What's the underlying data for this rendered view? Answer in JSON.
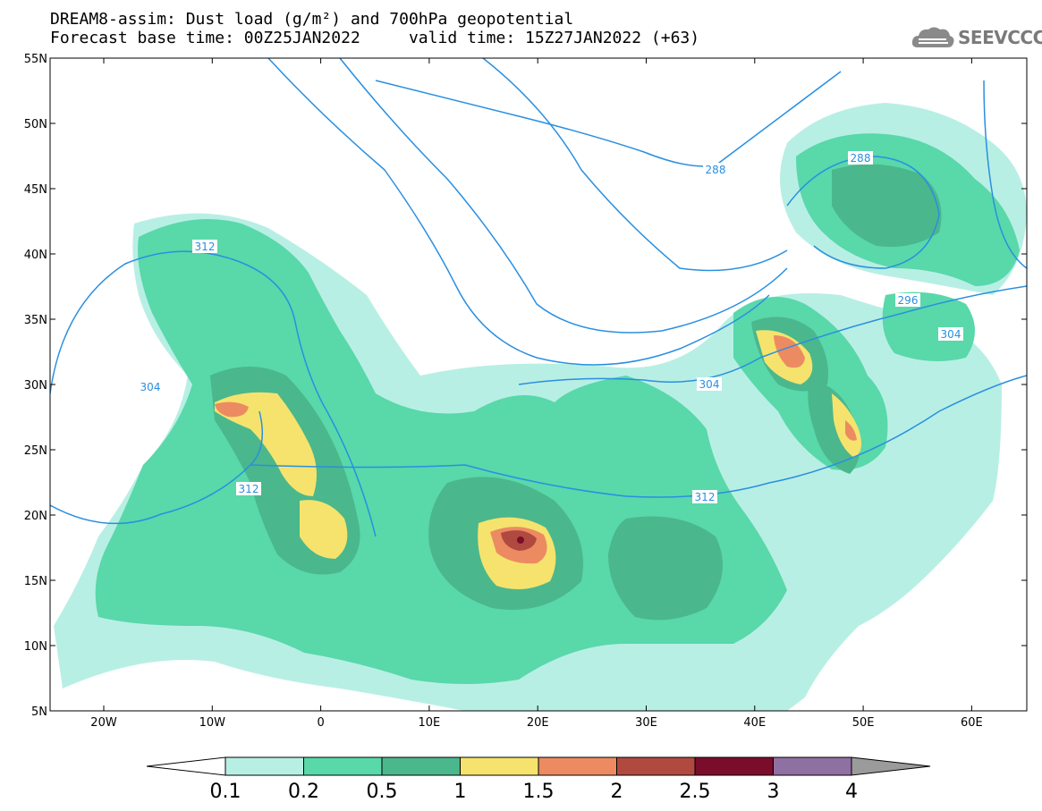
{
  "header": {
    "line1": "DREAM8-assim: Dust load (g/m²) and 700hPa geopotential",
    "line2": "Forecast base time: 00Z25JAN2022     valid time: 15Z27JAN2022 (+63)",
    "logo_text": "SEEVCCC"
  },
  "map": {
    "lat_labels": [
      "55N",
      "50N",
      "45N",
      "40N",
      "35N",
      "30N",
      "25N",
      "20N",
      "15N",
      "10N",
      "5N"
    ],
    "lon_labels": [
      "20W",
      "10W",
      "0",
      "10E",
      "20E",
      "30E",
      "40E",
      "50E",
      "60E"
    ],
    "contour_labels": [
      "288",
      "288",
      "296",
      "304",
      "304",
      "304",
      "312",
      "312",
      "312"
    ],
    "contour_color": "#2a8fe0"
  },
  "colorbar": {
    "labels": [
      "0.1",
      "0.2",
      "0.5",
      "1",
      "1.5",
      "2",
      "2.5",
      "3",
      "4"
    ],
    "colors": [
      "#b8efe4",
      "#59d8aa",
      "#4bb78c",
      "#f5e36e",
      "#ec8b62",
      "#b04a40",
      "#7b0d2c",
      "#8f70a3"
    ],
    "under_color": "#ffffff",
    "over_color": "#9b9b9b"
  }
}
